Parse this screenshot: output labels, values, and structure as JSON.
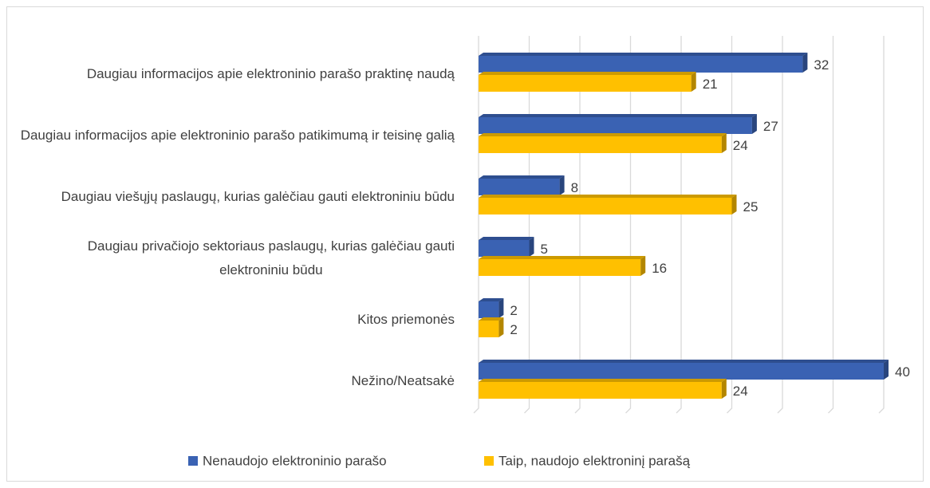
{
  "chart_data": {
    "type": "bar",
    "orientation": "horizontal",
    "categories": [
      "Daugiau informacijos apie elektroninio parašo praktinę naudą",
      "Daugiau informacijos apie elektroninio parašo patikimumą ir teisinę galią",
      "Daugiau viešųjų paslaugų, kurias galėčiau gauti elektroniniu būdu",
      "Daugiau privačiojo sektoriaus paslaugų, kurias galėčiau gauti elektroniniu būdu",
      "Kitos priemonės",
      "Nežino/Neatsakė"
    ],
    "series": [
      {
        "name": "Nenaudojo elektroninio parašo",
        "color": "#3a62b3",
        "values": [
          32,
          27,
          8,
          5,
          2,
          40
        ]
      },
      {
        "name": "Taip, naudojo elektroninį parašą",
        "color": "#ffc000",
        "values": [
          21,
          24,
          25,
          16,
          2,
          24
        ]
      }
    ],
    "xlim": [
      0,
      40
    ],
    "xticks": [
      0,
      5,
      10,
      15,
      20,
      25,
      30,
      35,
      40
    ],
    "grid": true,
    "legend": "bottom"
  }
}
